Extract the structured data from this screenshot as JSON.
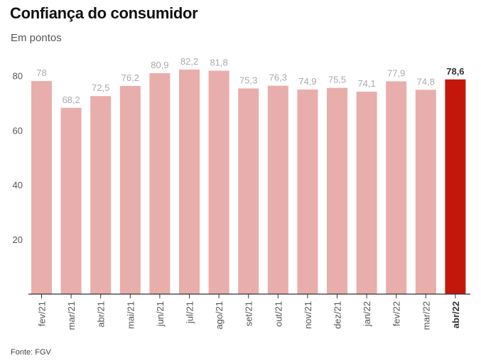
{
  "title": "Confiança do consumidor",
  "subtitle": "Em pontos",
  "source": "Fonte: FGV",
  "colors": {
    "bar": "#e8aeab",
    "highlight_bar": "#c4170c",
    "value_label": "#aaaaaa",
    "highlight_label": "#333333",
    "axis": "#333333",
    "tick_label": "#555555"
  },
  "chart_data": {
    "type": "bar",
    "categories": [
      "fev/21",
      "mar/21",
      "abr/21",
      "mai/21",
      "jun/21",
      "jul/21",
      "ago/21",
      "set/21",
      "out/21",
      "nov/21",
      "dez/21",
      "jan/22",
      "fev/22",
      "mar/22",
      "abr/22"
    ],
    "values": [
      78,
      68.2,
      72.5,
      76.2,
      80.9,
      82.2,
      81.8,
      75.3,
      76.3,
      74.9,
      75.5,
      74.1,
      77.9,
      74.8,
      78.6
    ],
    "value_labels": [
      "78",
      "68,2",
      "72,5",
      "76,2",
      "80,9",
      "82,2",
      "81,8",
      "75,3",
      "76,3",
      "74,9",
      "75,5",
      "74,1",
      "77,9",
      "74,8",
      "78,6"
    ],
    "highlight_index": 14,
    "yticks": [
      20,
      40,
      60,
      80
    ],
    "ylim": [
      0,
      85
    ],
    "grid": false
  }
}
